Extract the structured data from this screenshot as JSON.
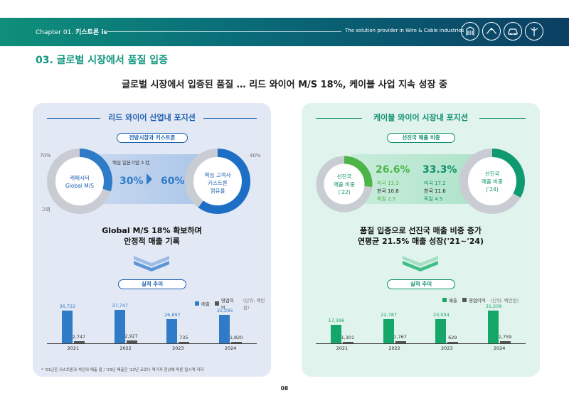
{
  "header": {
    "chapter_prefix": "Chapter 01.",
    "chapter_name": "키스트론 is",
    "tagline": "The solution provider in Wire & Cable industries",
    "icons": [
      "building-icon",
      "cable-icon",
      "car-icon",
      "wind-turbine-icon"
    ]
  },
  "section_title": "03. 글로벌 시장에서 품질 입증",
  "subtitle": "글로벌 시장에서 입증된 품질 … 리드 와이어 M/S 18%, 케이블 사업 지속 성장 중",
  "left": {
    "title": "리드 와이어 산업내 포지션",
    "pill": "전방시장과 키스트론",
    "pct_70": "70%",
    "other_label": "그외",
    "pct_40": "40%",
    "ring_left_label_1": "캐패시터",
    "ring_left_label_2": "Global M/S",
    "middle_label": "핵심 일본기업 3 社",
    "pct_30": "30%",
    "pct_60": "60%",
    "ring_right_label_1": "핵심 고객사",
    "ring_right_label_2": "키스트론",
    "ring_right_label_3": "점유율",
    "headline_1": "Global M/S 18% 확보하며",
    "headline_2": "안정적 매출 기록",
    "perf_pill": "실적 추이",
    "legend_sales": "매출",
    "legend_op": "영업이익",
    "unit": "(단위: 백만원)",
    "footnote": "* '21년은 키스트론과 석진의 매출 합 / '23년 매출은 '22년 코로나 역기저 현상에 따른 일시적 저하",
    "colors": {
      "sales": "#2f7bc8",
      "op": "#555555",
      "accent": "#1d5fb0"
    }
  },
  "right": {
    "title": "케이블 와이어 시장내 포지션",
    "pill": "선진국 매출 비중",
    "ring_left_label_1": "선진국",
    "ring_left_label_2": "매출 비중",
    "ring_left_label_3": "('22)",
    "ring_right_label_1": "선진국",
    "ring_right_label_2": "매출 비중",
    "ring_right_label_3": "('24)",
    "pct_22": "26.6%",
    "pct_24": "33.3%",
    "stats_22": [
      "미국 13.3",
      "한국 10.8",
      "독일  2.5"
    ],
    "stats_24": [
      "미국 17.2",
      "한국 11.6",
      "독일  4.5"
    ],
    "headline_1": "품질 입증으로 선진국 매출 비중 증가",
    "headline_2": "연평균 21.5% 매출 성장('21~'24)",
    "perf_pill": "실적 추이",
    "legend_sales": "매출",
    "legend_op": "영업이익",
    "unit": "(단위: 백만원)",
    "colors": {
      "sales": "#15a66a",
      "op": "#555555",
      "accent": "#0f8f6c"
    }
  },
  "page_number": "08",
  "chart_data": [
    {
      "type": "bar",
      "title": "실적 추이 (리드 와이어)",
      "categories": [
        "2021",
        "2022",
        "2023",
        "2024"
      ],
      "series": [
        {
          "name": "매출",
          "values": [
            36722,
            37747,
            26897,
            32295
          ],
          "labels": [
            "36,722",
            "37,747",
            "26,897",
            "32,295"
          ]
        },
        {
          "name": "영업이익",
          "values": [
            2747,
            2927,
            735,
            1820
          ],
          "labels": [
            "2,747",
            "2,927",
            "735",
            "1,820"
          ]
        }
      ],
      "ylim": [
        0,
        40000
      ]
    },
    {
      "type": "bar",
      "title": "실적 추이 (케이블 와이어)",
      "categories": [
        "2021",
        "2022",
        "2023",
        "2024"
      ],
      "series": [
        {
          "name": "매출",
          "values": [
            17396,
            22787,
            23034,
            31209
          ],
          "labels": [
            "17,396",
            "22,787",
            "23,034",
            "31,209"
          ]
        },
        {
          "name": "영업이익",
          "values": [
            1301,
            1767,
            629,
            1759
          ],
          "labels": [
            "1,301",
            "1,767",
            "629",
            "1,759"
          ]
        }
      ],
      "ylim": [
        0,
        34000
      ]
    }
  ]
}
